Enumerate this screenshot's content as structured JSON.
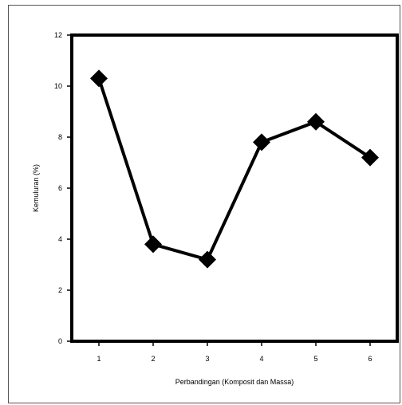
{
  "chart_data": {
    "type": "line",
    "title": "",
    "xlabel": "Perbandingan (Komposit dan Massa)",
    "ylabel": "Kemuluran (%)",
    "x": [
      1,
      2,
      3,
      4,
      5,
      6
    ],
    "x_tick_labels": [
      "1",
      "2",
      "3",
      "4",
      "5",
      "6"
    ],
    "y_tick_labels": [
      "0",
      "2",
      "4",
      "6",
      "8",
      "10",
      "12"
    ],
    "series": [
      {
        "values": [
          10.3,
          3.8,
          3.2,
          7.8,
          8.6,
          7.2
        ],
        "marker": "diamond",
        "color": "#000000"
      }
    ],
    "xlim": [
      0.5,
      6.5
    ],
    "ylim": [
      0,
      12
    ],
    "y_ticks": [
      0,
      2,
      4,
      6,
      8,
      10,
      12
    ],
    "grid": false,
    "legend": "none"
  }
}
